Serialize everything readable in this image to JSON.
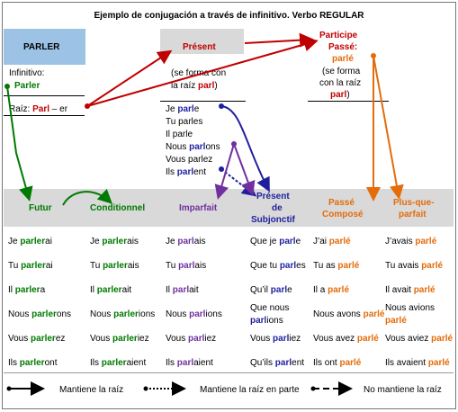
{
  "title": "Ejemplo de conjugación a través de infinitivo. Verbo REGULAR",
  "parler_label": "PARLER",
  "infinitivo_label": "Infinitivo:",
  "infinitivo_value": "Parler",
  "raiz_prefix": "Raíz:",
  "raiz_stem": "Parl",
  "raiz_suffix": " – er",
  "present": {
    "header": "Présent",
    "note_line1": "(se forma con",
    "note_line2_prefix": "la raíz ",
    "note_stem": "parl",
    "note_suffix": ")",
    "forms": [
      {
        "pre": "Je ",
        "stem": "parl",
        "end": "e"
      },
      {
        "pre": "Tu parles",
        "stem": "",
        "end": ""
      },
      {
        "pre": "Il parle",
        "stem": "",
        "end": ""
      },
      {
        "pre": "Nous ",
        "stem": "parl",
        "end": "ons"
      },
      {
        "pre": "Vous parlez",
        "stem": "",
        "end": ""
      },
      {
        "pre": "Ils ",
        "stem": "parl",
        "end": "ent"
      }
    ]
  },
  "participe": {
    "header1": "Participe",
    "header2": "Passé:",
    "value": "parlé",
    "note1": "(se forma",
    "note2": "con la raíz",
    "note_stem": "parl",
    "note_suffix": ")"
  },
  "columns": {
    "futur": {
      "header": "Futur",
      "rows": [
        [
          "Je ",
          "parler",
          "ai"
        ],
        [
          "Tu ",
          "parler",
          "ai"
        ],
        [
          "Il ",
          "parler",
          "a"
        ],
        [
          "Nous ",
          "parler",
          "ons"
        ],
        [
          "Vous ",
          "parler",
          "ez"
        ],
        [
          "Ils ",
          "parler",
          "ont"
        ]
      ]
    },
    "conditionnel": {
      "header": "Conditionnel",
      "rows": [
        [
          "Je ",
          "parler",
          "ais"
        ],
        [
          "Tu ",
          "parler",
          "ais"
        ],
        [
          "Il ",
          "parler",
          "ait"
        ],
        [
          "Nous ",
          "parler",
          "ions"
        ],
        [
          "Vous ",
          "parler",
          "iez"
        ],
        [
          "Ils ",
          "parler",
          "aient"
        ]
      ]
    },
    "imparfait": {
      "header": "Imparfait",
      "rows": [
        [
          "Je ",
          "parl",
          "ais"
        ],
        [
          "Tu ",
          "parl",
          "ais"
        ],
        [
          "Il ",
          "parl",
          "ait"
        ],
        [
          "Nous ",
          "parl",
          "ions"
        ],
        [
          "Vous ",
          "parl",
          "iez"
        ],
        [
          "Ils ",
          "parl",
          "aient"
        ]
      ]
    },
    "subjonctif": {
      "header1": "Présent",
      "header2": "de",
      "header3": "Subjonctif",
      "rows": [
        [
          "Que je ",
          "parl",
          "e"
        ],
        [
          "Que tu ",
          "parl",
          "es"
        ],
        [
          "Qu’il ",
          "parl",
          "e"
        ],
        [
          "Que nous ",
          "parl",
          "ions"
        ],
        [
          "Vous ",
          "parl",
          "iez"
        ],
        [
          "Qu’ils ",
          "parl",
          "ent"
        ]
      ]
    },
    "passe_compose": {
      "header1": "Passé",
      "header2": "Composé",
      "rows": [
        [
          "J’ai ",
          "parlé"
        ],
        [
          "Tu as ",
          "parlé"
        ],
        [
          "Il a ",
          "parlé"
        ],
        [
          "Nous avons ",
          "parlé"
        ],
        [
          "Vous avez ",
          "parlé"
        ],
        [
          "Ils ont ",
          "parlé"
        ]
      ]
    },
    "plus_que_parfait": {
      "header1": "Plus-que-",
      "header2": "parfait",
      "rows": [
        [
          "J’avais ",
          "parlé"
        ],
        [
          "Tu avais ",
          "parlé"
        ],
        [
          "Il avait ",
          "parlé"
        ],
        [
          "Nous avions ",
          "parlé"
        ],
        [
          "Vous aviez ",
          "parlé"
        ],
        [
          "Ils avaient ",
          "parlé"
        ]
      ]
    }
  },
  "legend": {
    "solid": "Mantiene la raíz",
    "dotted": "Mantiene la raíz en parte",
    "dashed": "No mantiene la raíz"
  },
  "colors": {
    "green": "#007a00",
    "red": "#c00000",
    "blue": "#1f1f9e",
    "purple": "#7030a0",
    "orange": "#e46c0a",
    "parler_box": "#9cc3e6",
    "gray": "#d9d9d9"
  }
}
